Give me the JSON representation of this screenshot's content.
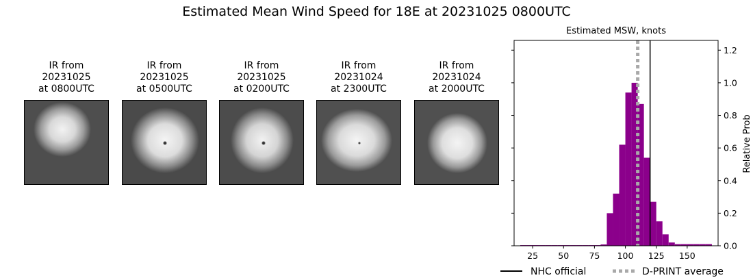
{
  "title": "Estimated Mean Wind Speed for 18E at 20231025 0800UTC",
  "ir_panels": [
    {
      "line1": "IR from",
      "line2": "20231025",
      "line3": "at 0800UTC"
    },
    {
      "line1": "IR from",
      "line2": "20231025",
      "line3": "at 0500UTC"
    },
    {
      "line1": "IR from",
      "line2": "20231025",
      "line3": "at 0200UTC"
    },
    {
      "line1": "IR from",
      "line2": "20231024",
      "line3": "at 2300UTC"
    },
    {
      "line1": "IR from",
      "line2": "20231024",
      "line3": "at 2000UTC"
    }
  ],
  "chart_data": {
    "type": "bar",
    "title": "Estimated MSW, knots",
    "xlabel": "",
    "ylabel": "Relative Prob",
    "xlim": [
      10,
      175
    ],
    "ylim": [
      0,
      1.26
    ],
    "x_ticks": [
      25,
      50,
      75,
      100,
      125,
      150
    ],
    "y_ticks": [
      0.0,
      0.2,
      0.4,
      0.6,
      0.8,
      1.0,
      1.2
    ],
    "y_tick_labels": [
      "0.0",
      "0.2",
      "0.4",
      "0.6",
      "0.8",
      "1.0",
      "1.2"
    ],
    "y_axis_side": "right",
    "bar_color": "#8b008b",
    "bin_width": 5,
    "bins": [
      {
        "x0": 15,
        "value": 0.004
      },
      {
        "x0": 20,
        "value": 0.004
      },
      {
        "x0": 25,
        "value": 0.004
      },
      {
        "x0": 30,
        "value": 0.004
      },
      {
        "x0": 35,
        "value": 0.004
      },
      {
        "x0": 40,
        "value": 0.004
      },
      {
        "x0": 45,
        "value": 0.004
      },
      {
        "x0": 50,
        "value": 0.004
      },
      {
        "x0": 55,
        "value": 0.004
      },
      {
        "x0": 60,
        "value": 0.004
      },
      {
        "x0": 65,
        "value": 0.004
      },
      {
        "x0": 70,
        "value": 0.004
      },
      {
        "x0": 75,
        "value": 0.004
      },
      {
        "x0": 80,
        "value": 0.008
      },
      {
        "x0": 85,
        "value": 0.2
      },
      {
        "x0": 90,
        "value": 0.32
      },
      {
        "x0": 95,
        "value": 0.62
      },
      {
        "x0": 100,
        "value": 0.94
      },
      {
        "x0": 105,
        "value": 1.0
      },
      {
        "x0": 110,
        "value": 0.87
      },
      {
        "x0": 115,
        "value": 0.54
      },
      {
        "x0": 120,
        "value": 0.27
      },
      {
        "x0": 125,
        "value": 0.15
      },
      {
        "x0": 130,
        "value": 0.07
      },
      {
        "x0": 135,
        "value": 0.02
      },
      {
        "x0": 140,
        "value": 0.01
      },
      {
        "x0": 145,
        "value": 0.01
      },
      {
        "x0": 150,
        "value": 0.01
      },
      {
        "x0": 155,
        "value": 0.01
      },
      {
        "x0": 160,
        "value": 0.01
      },
      {
        "x0": 165,
        "value": 0.01
      }
    ],
    "nhc_official": 120,
    "dprint_average": 110,
    "legend": [
      {
        "label": "NHC official",
        "style": "solid",
        "color": "#000000"
      },
      {
        "label": "D-PRINT average",
        "style": "dotted",
        "color": "#a9a9a9"
      }
    ],
    "legend_position": "bottom"
  }
}
